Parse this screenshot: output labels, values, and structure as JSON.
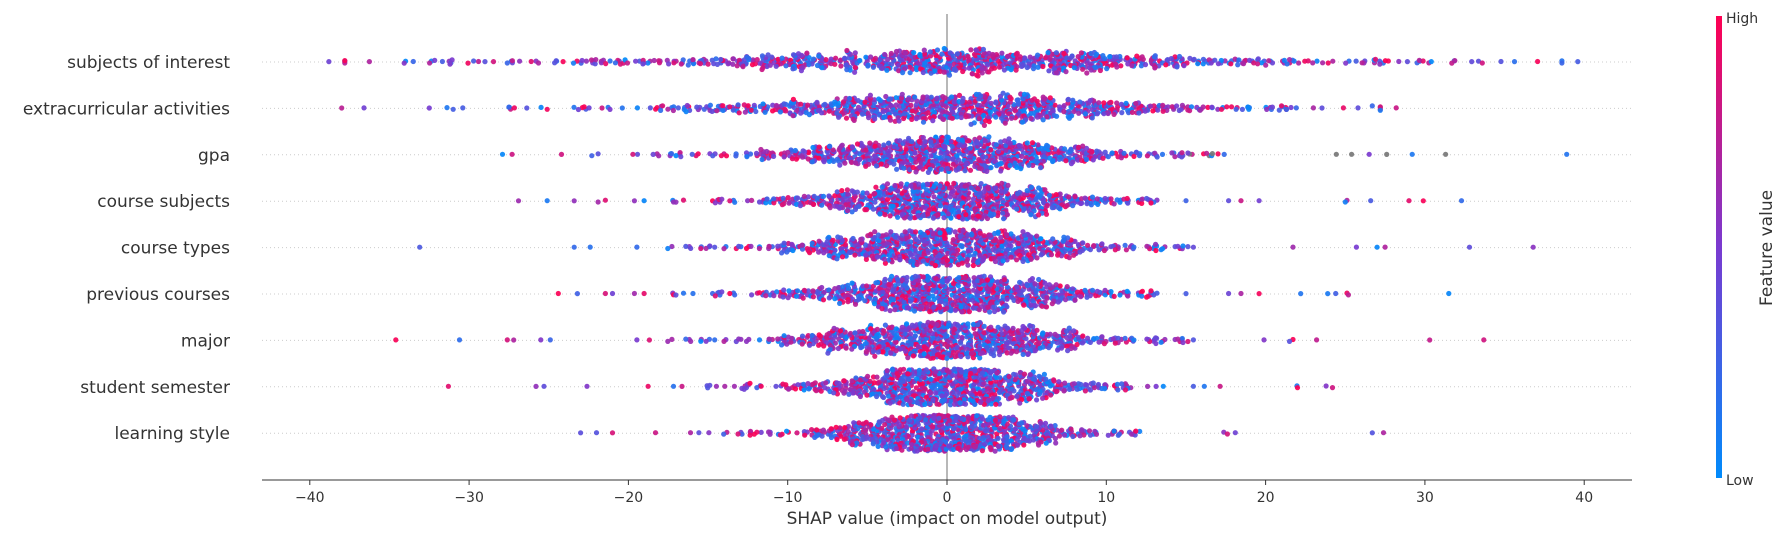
{
  "chart_data": {
    "type": "scatter",
    "subtype": "shap-beeswarm",
    "title": "",
    "xlabel": "SHAP value (impact on model output)",
    "ylabel": "",
    "xlim": [
      -43,
      43
    ],
    "x_ticks": [
      -40,
      -30,
      -20,
      -10,
      0,
      10,
      20,
      30,
      40
    ],
    "x_tick_labels": [
      "−40",
      "−30",
      "−20",
      "−10",
      "0",
      "10",
      "20",
      "30",
      "40"
    ],
    "zero_line": true,
    "colorbar": {
      "label": "Feature value",
      "high_label": "High",
      "low_label": "Low",
      "low_color": "#008bfb",
      "high_color": "#ff0052"
    },
    "features": [
      {
        "name": "subjects of interest",
        "range": [
          -38.8,
          39.6
        ],
        "spread": 8.5,
        "center": 0.5,
        "outliers": [
          -38.8,
          -33.5,
          -31.2,
          -29.0,
          -27.6,
          -26.1,
          21.5,
          26.9,
          30.4,
          33.6,
          39.6
        ]
      },
      {
        "name": "extracurricular activities",
        "range": [
          -38.0,
          28.2
        ],
        "spread": 6.5,
        "center": 0.5,
        "outliers": [
          -38.0,
          -36.6,
          -32.5,
          -31.0,
          -27.5,
          -25.1,
          21.0,
          23.0,
          25.8,
          26.7,
          28.2
        ]
      },
      {
        "name": "gpa",
        "range": [
          -27.9,
          38.9
        ],
        "spread": 4.5,
        "center": 0.0,
        "outliers": [
          -27.9,
          -27.3,
          -24.2,
          -22.3,
          25.4,
          26.5,
          27.6,
          29.2,
          31.3,
          38.9
        ]
      },
      {
        "name": "course subjects",
        "range": [
          -26.9,
          32.3
        ],
        "spread": 4.0,
        "center": 0.0,
        "outliers": [
          -26.9,
          -25.1,
          -23.4,
          -21.9,
          25.0,
          26.6,
          29.0,
          29.9,
          32.3
        ]
      },
      {
        "name": "course types",
        "range": [
          -33.1,
          36.8
        ],
        "spread": 4.0,
        "center": 0.0,
        "outliers": [
          -33.1,
          -23.4,
          -22.4,
          25.7,
          27.0,
          27.5,
          32.8,
          36.8
        ]
      },
      {
        "name": "previous courses",
        "range": [
          -24.4,
          31.5
        ],
        "spread": 4.0,
        "center": 0.0,
        "outliers": [
          -24.4,
          -23.2,
          -21.0,
          22.2,
          23.9,
          24.4,
          25.2,
          31.5
        ]
      },
      {
        "name": "major",
        "range": [
          -34.6,
          33.7
        ],
        "spread": 4.0,
        "center": 0.0,
        "outliers": [
          -34.6,
          -30.6,
          -27.6,
          -27.2,
          -25.5,
          -24.9,
          19.9,
          21.5,
          23.2,
          30.3,
          33.7
        ]
      },
      {
        "name": "student semester",
        "range": [
          -31.3,
          24.2
        ],
        "spread": 3.5,
        "center": 0.0,
        "outliers": [
          -31.3,
          -25.8,
          -25.3,
          -22.6,
          22.0,
          23.8,
          24.2
        ]
      },
      {
        "name": "learning style",
        "range": [
          -23.0,
          27.4
        ],
        "spread": 3.2,
        "center": 0.0,
        "outliers": [
          -23.0,
          -22.0,
          -21.0,
          -18.3,
          -16.1,
          17.6,
          18.1,
          26.7,
          27.4
        ]
      }
    ]
  }
}
